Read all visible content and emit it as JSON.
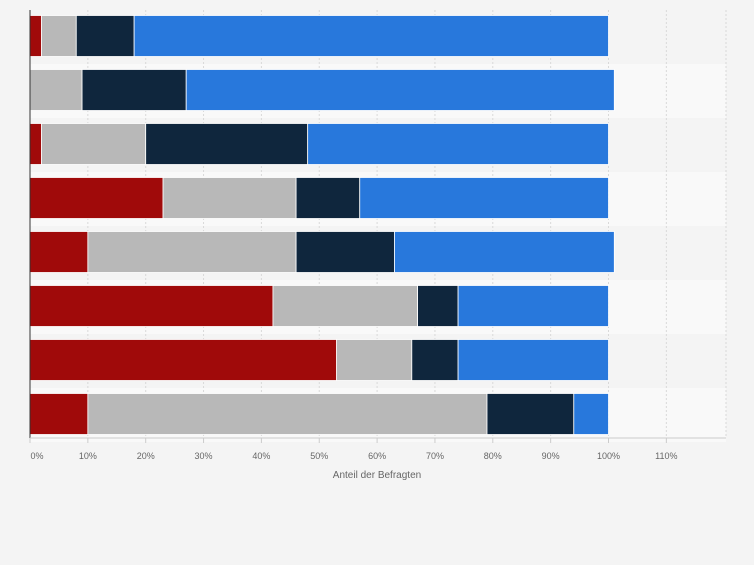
{
  "chart_data": {
    "type": "bar",
    "orientation": "horizontal",
    "stacked": true,
    "categories": [
      "",
      "",
      "",
      "",
      "",
      "",
      "",
      ""
    ],
    "series": [
      {
        "color": "#a00a0a",
        "values": [
          2,
          0,
          2,
          23,
          10,
          42,
          53,
          10
        ]
      },
      {
        "color": "#b8b8b8",
        "values": [
          6,
          9,
          18,
          23,
          36,
          25,
          13,
          69
        ]
      },
      {
        "color": "#0f263d",
        "values": [
          10,
          18,
          28,
          11,
          17,
          7,
          8,
          15
        ]
      },
      {
        "color": "#2878dc",
        "values": [
          82,
          74,
          52,
          43,
          38,
          26,
          26,
          6
        ]
      }
    ],
    "xlim": [
      0,
      115
    ],
    "xticks": [
      "0%",
      "10%",
      "20%",
      "30%",
      "40%",
      "50%",
      "60%",
      "70%",
      "80%",
      "90%",
      "100%",
      "110%"
    ],
    "xlabel": "Anteil der Befragten",
    "grid": true,
    "legend": "none"
  }
}
